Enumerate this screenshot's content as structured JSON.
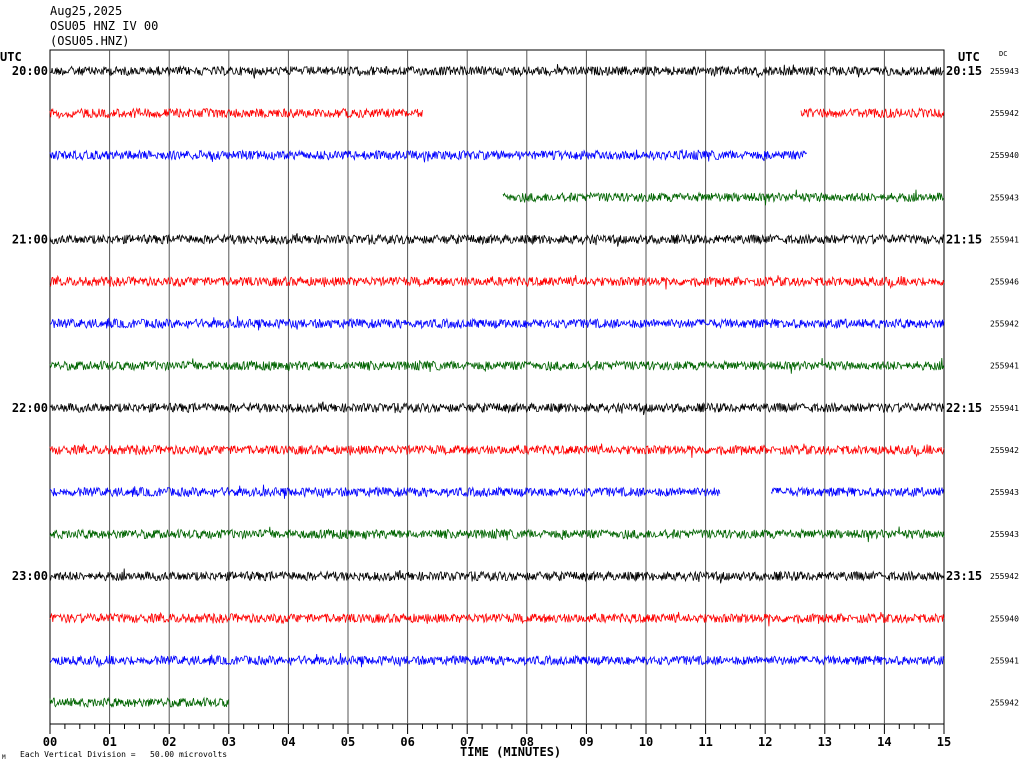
{
  "header": {
    "date": "Aug25,2025",
    "station_line": "OSU05 HNZ IV 00",
    "channel_code": "(OSU05.HNZ)"
  },
  "chart_data": {
    "type": "line",
    "subtype": "helicorder",
    "xlabel": "TIME (MINUTES)",
    "xlim": [
      0,
      15
    ],
    "x_ticks": [
      "00",
      "01",
      "02",
      "03",
      "04",
      "05",
      "06",
      "07",
      "08",
      "09",
      "10",
      "11",
      "12",
      "13",
      "14",
      "15"
    ],
    "left_axis_title": "UTC",
    "right_axis_title": "UTC",
    "dc_header": "DC",
    "scale_note": "Each Vertical Division =   50.00 microvolts",
    "corner_mark": "M",
    "grid": true,
    "line_colors": [
      "#000000",
      "#ff0000",
      "#0000ff",
      "#006400"
    ],
    "rows": [
      {
        "left_label": "20:00",
        "right_label": "20:15",
        "dc": "255943",
        "color": "#000000",
        "segments": [
          [
            0,
            15
          ]
        ]
      },
      {
        "left_label": "",
        "right_label": "",
        "dc": "255942",
        "color": "#ff0000",
        "segments": [
          [
            0,
            6.25
          ],
          [
            12.6,
            15
          ]
        ]
      },
      {
        "left_label": "",
        "right_label": "",
        "dc": "255940",
        "color": "#0000ff",
        "segments": [
          [
            0,
            12.7
          ]
        ]
      },
      {
        "left_label": "",
        "right_label": "",
        "dc": "255943",
        "color": "#006400",
        "segments": [
          [
            7.6,
            15
          ]
        ]
      },
      {
        "left_label": "21:00",
        "right_label": "21:15",
        "dc": "255941",
        "color": "#000000",
        "segments": [
          [
            0,
            15
          ]
        ]
      },
      {
        "left_label": "",
        "right_label": "",
        "dc": "255946",
        "color": "#ff0000",
        "segments": [
          [
            0,
            15
          ]
        ]
      },
      {
        "left_label": "",
        "right_label": "",
        "dc": "255942",
        "color": "#0000ff",
        "segments": [
          [
            0,
            15
          ]
        ]
      },
      {
        "left_label": "",
        "right_label": "",
        "dc": "255941",
        "color": "#006400",
        "segments": [
          [
            0,
            15
          ]
        ]
      },
      {
        "left_label": "22:00",
        "right_label": "22:15",
        "dc": "255941",
        "color": "#000000",
        "segments": [
          [
            0,
            15
          ]
        ]
      },
      {
        "left_label": "",
        "right_label": "",
        "dc": "255942",
        "color": "#ff0000",
        "segments": [
          [
            0,
            15
          ]
        ]
      },
      {
        "left_label": "",
        "right_label": "",
        "dc": "255943",
        "color": "#0000ff",
        "segments": [
          [
            0,
            11.25
          ],
          [
            12.1,
            15
          ]
        ]
      },
      {
        "left_label": "",
        "right_label": "",
        "dc": "255943",
        "color": "#006400",
        "segments": [
          [
            0,
            15
          ]
        ]
      },
      {
        "left_label": "23:00",
        "right_label": "23:15",
        "dc": "255942",
        "color": "#000000",
        "segments": [
          [
            0,
            15
          ]
        ]
      },
      {
        "left_label": "",
        "right_label": "",
        "dc": "255940",
        "color": "#ff0000",
        "segments": [
          [
            0,
            15
          ]
        ]
      },
      {
        "left_label": "",
        "right_label": "",
        "dc": "255941",
        "color": "#0000ff",
        "segments": [
          [
            0,
            15
          ]
        ]
      },
      {
        "left_label": "",
        "right_label": "",
        "dc": "255942",
        "color": "#006400",
        "segments": [
          [
            0,
            3
          ]
        ]
      }
    ]
  }
}
